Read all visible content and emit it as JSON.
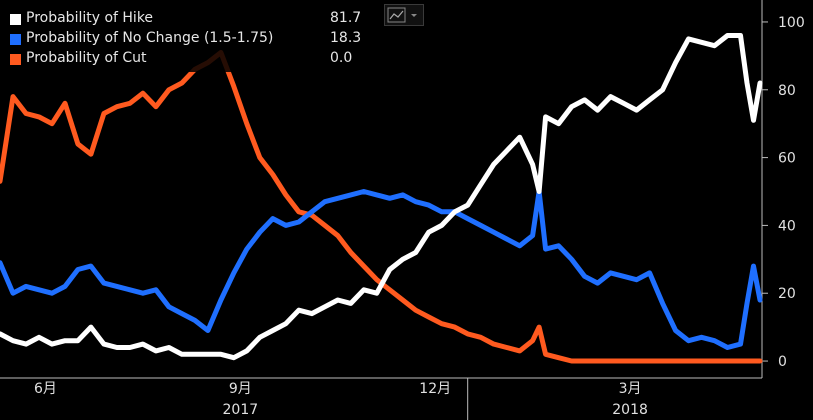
{
  "chart_data": {
    "type": "line",
    "legend_placement": "top-left",
    "ylim": [
      -5,
      105
    ],
    "y_ticks": [
      0,
      20,
      40,
      60,
      80,
      100
    ],
    "grid": false,
    "x_month_ticks": [
      {
        "label": "6月",
        "t": 1.5
      },
      {
        "label": "9月",
        "t": 4.5
      },
      {
        "label": "12月",
        "t": 7.5
      },
      {
        "label": "3月",
        "t": 10.5
      }
    ],
    "x_year_labels": [
      {
        "label": "2017",
        "t": 4.5
      },
      {
        "label": "2018",
        "t": 10.5
      }
    ],
    "x_range": [
      0.8,
      12.5
    ],
    "year_divider_t": 8.0,
    "series": [
      {
        "name": "Probability of Hike",
        "latest": "81.7",
        "color": "#ffffff",
        "points": [
          [
            0.8,
            8
          ],
          [
            1.0,
            6
          ],
          [
            1.2,
            5
          ],
          [
            1.4,
            7
          ],
          [
            1.6,
            5
          ],
          [
            1.8,
            6
          ],
          [
            2.0,
            6
          ],
          [
            2.2,
            10
          ],
          [
            2.4,
            5
          ],
          [
            2.6,
            4
          ],
          [
            2.8,
            4
          ],
          [
            3.0,
            5
          ],
          [
            3.2,
            3
          ],
          [
            3.4,
            4
          ],
          [
            3.6,
            2
          ],
          [
            3.8,
            2
          ],
          [
            4.0,
            2
          ],
          [
            4.2,
            2
          ],
          [
            4.4,
            1
          ],
          [
            4.6,
            3
          ],
          [
            4.8,
            7
          ],
          [
            5.0,
            9
          ],
          [
            5.2,
            11
          ],
          [
            5.4,
            15
          ],
          [
            5.6,
            14
          ],
          [
            5.8,
            16
          ],
          [
            6.0,
            18
          ],
          [
            6.2,
            17
          ],
          [
            6.4,
            21
          ],
          [
            6.6,
            20
          ],
          [
            6.8,
            27
          ],
          [
            7.0,
            30
          ],
          [
            7.2,
            32
          ],
          [
            7.4,
            38
          ],
          [
            7.6,
            40
          ],
          [
            7.8,
            44
          ],
          [
            8.0,
            46
          ],
          [
            8.2,
            52
          ],
          [
            8.4,
            58
          ],
          [
            8.6,
            62
          ],
          [
            8.8,
            66
          ],
          [
            9.0,
            58
          ],
          [
            9.1,
            50
          ],
          [
            9.2,
            72
          ],
          [
            9.4,
            70
          ],
          [
            9.6,
            75
          ],
          [
            9.8,
            77
          ],
          [
            10.0,
            74
          ],
          [
            10.2,
            78
          ],
          [
            10.4,
            76
          ],
          [
            10.6,
            74
          ],
          [
            10.8,
            77
          ],
          [
            11.0,
            80
          ],
          [
            11.2,
            88
          ],
          [
            11.4,
            95
          ],
          [
            11.6,
            94
          ],
          [
            11.8,
            93
          ],
          [
            12.0,
            96
          ],
          [
            12.2,
            96
          ],
          [
            12.3,
            82
          ],
          [
            12.4,
            71
          ],
          [
            12.5,
            82
          ]
        ]
      },
      {
        "name": "Probability of No Change (1.5-1.75)",
        "latest": "18.3",
        "color": "#1f6fff",
        "points": [
          [
            0.8,
            29
          ],
          [
            1.0,
            20
          ],
          [
            1.2,
            22
          ],
          [
            1.4,
            21
          ],
          [
            1.6,
            20
          ],
          [
            1.8,
            22
          ],
          [
            2.0,
            27
          ],
          [
            2.2,
            28
          ],
          [
            2.4,
            23
          ],
          [
            2.6,
            22
          ],
          [
            2.8,
            21
          ],
          [
            3.0,
            20
          ],
          [
            3.2,
            21
          ],
          [
            3.4,
            16
          ],
          [
            3.6,
            14
          ],
          [
            3.8,
            12
          ],
          [
            4.0,
            9
          ],
          [
            4.2,
            18
          ],
          [
            4.4,
            26
          ],
          [
            4.6,
            33
          ],
          [
            4.8,
            38
          ],
          [
            5.0,
            42
          ],
          [
            5.2,
            40
          ],
          [
            5.4,
            41
          ],
          [
            5.6,
            44
          ],
          [
            5.8,
            47
          ],
          [
            6.0,
            48
          ],
          [
            6.2,
            49
          ],
          [
            6.4,
            50
          ],
          [
            6.6,
            49
          ],
          [
            6.8,
            48
          ],
          [
            7.0,
            49
          ],
          [
            7.2,
            47
          ],
          [
            7.4,
            46
          ],
          [
            7.6,
            44
          ],
          [
            7.8,
            44
          ],
          [
            8.0,
            42
          ],
          [
            8.2,
            40
          ],
          [
            8.4,
            38
          ],
          [
            8.6,
            36
          ],
          [
            8.8,
            34
          ],
          [
            9.0,
            37
          ],
          [
            9.1,
            50
          ],
          [
            9.2,
            33
          ],
          [
            9.4,
            34
          ],
          [
            9.6,
            30
          ],
          [
            9.8,
            25
          ],
          [
            10.0,
            23
          ],
          [
            10.2,
            26
          ],
          [
            10.4,
            25
          ],
          [
            10.6,
            24
          ],
          [
            10.8,
            26
          ],
          [
            11.0,
            17
          ],
          [
            11.2,
            9
          ],
          [
            11.4,
            6
          ],
          [
            11.6,
            7
          ],
          [
            11.8,
            6
          ],
          [
            12.0,
            4
          ],
          [
            12.2,
            5
          ],
          [
            12.3,
            17
          ],
          [
            12.4,
            28
          ],
          [
            12.5,
            18
          ]
        ]
      },
      {
        "name": "Probability of Cut",
        "latest": "0.0",
        "color": "#ff5a1f",
        "points": [
          [
            0.8,
            53
          ],
          [
            1.0,
            78
          ],
          [
            1.2,
            73
          ],
          [
            1.4,
            72
          ],
          [
            1.6,
            70
          ],
          [
            1.8,
            76
          ],
          [
            2.0,
            64
          ],
          [
            2.2,
            61
          ],
          [
            2.4,
            73
          ],
          [
            2.6,
            75
          ],
          [
            2.8,
            76
          ],
          [
            3.0,
            79
          ],
          [
            3.2,
            75
          ],
          [
            3.4,
            80
          ],
          [
            3.6,
            82
          ],
          [
            3.8,
            86
          ],
          [
            4.0,
            88
          ],
          [
            4.2,
            91
          ],
          [
            4.4,
            81
          ],
          [
            4.6,
            70
          ],
          [
            4.8,
            60
          ],
          [
            5.0,
            55
          ],
          [
            5.2,
            49
          ],
          [
            5.4,
            44
          ],
          [
            5.6,
            43
          ],
          [
            5.8,
            40
          ],
          [
            6.0,
            37
          ],
          [
            6.2,
            32
          ],
          [
            6.4,
            28
          ],
          [
            6.6,
            24
          ],
          [
            6.8,
            21
          ],
          [
            7.0,
            18
          ],
          [
            7.2,
            15
          ],
          [
            7.4,
            13
          ],
          [
            7.6,
            11
          ],
          [
            7.8,
            10
          ],
          [
            8.0,
            8
          ],
          [
            8.2,
            7
          ],
          [
            8.4,
            5
          ],
          [
            8.6,
            4
          ],
          [
            8.8,
            3
          ],
          [
            9.0,
            6
          ],
          [
            9.1,
            10
          ],
          [
            9.2,
            2
          ],
          [
            9.4,
            1
          ],
          [
            9.6,
            0
          ],
          [
            9.8,
            0
          ],
          [
            10.0,
            0
          ],
          [
            10.5,
            0
          ],
          [
            11.0,
            0
          ],
          [
            11.5,
            0
          ],
          [
            12.0,
            0
          ],
          [
            12.5,
            0
          ]
        ]
      }
    ]
  },
  "toolbar": {
    "chart_type_icon": "line-chart-icon",
    "dropdown_icon": "chevron-down-icon"
  }
}
